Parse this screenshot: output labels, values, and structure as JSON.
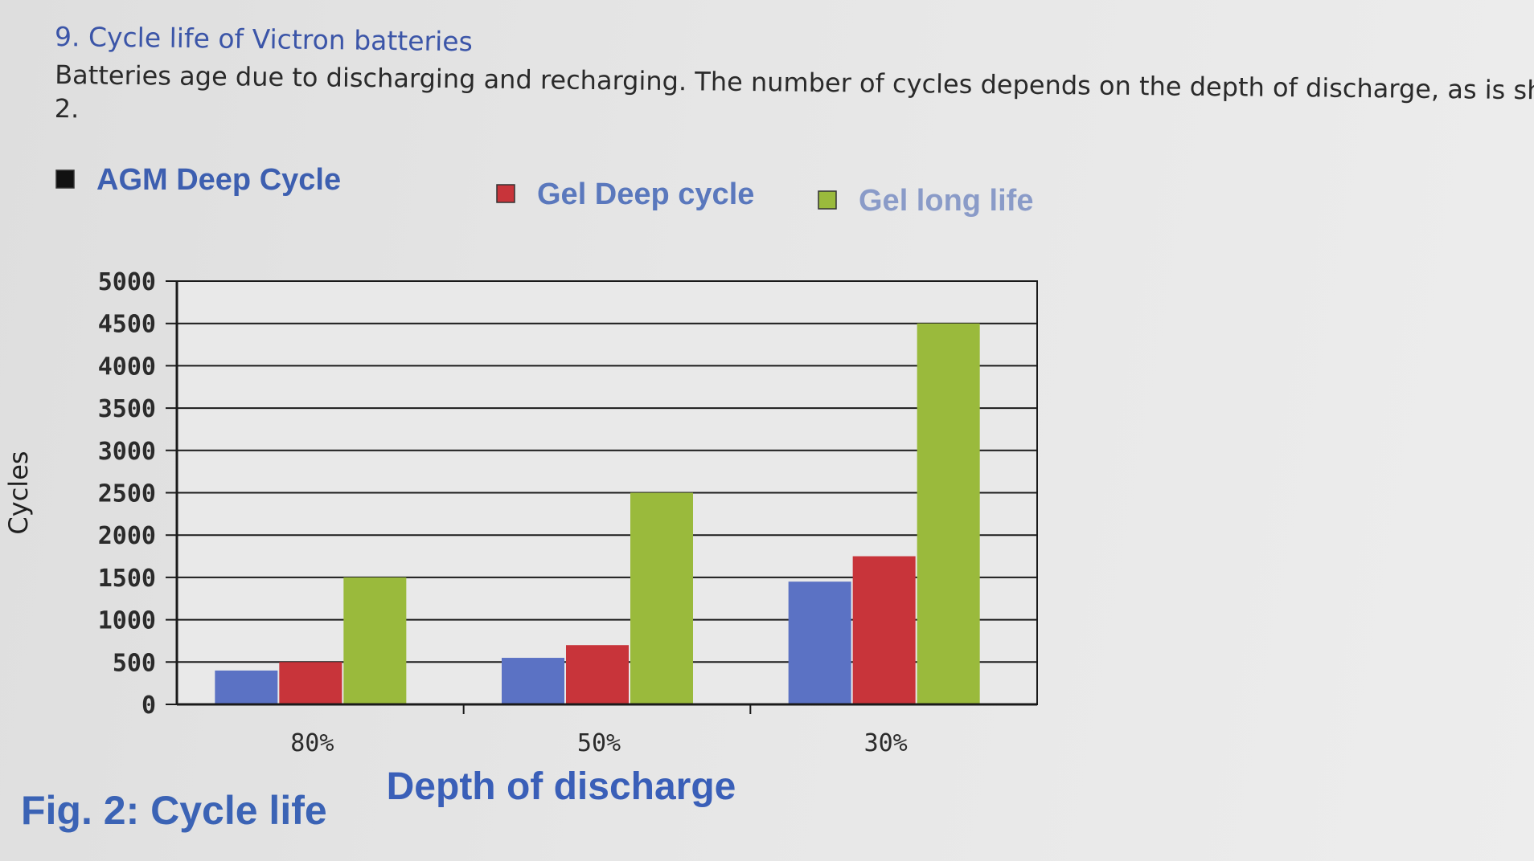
{
  "section": {
    "heading": "9. Cycle life of Victron batteries",
    "intro_line1": "Batteries age due to discharging and recharging. The number of cycles depends on the depth of discharge, as is shown",
    "intro_line2": "2."
  },
  "figure": {
    "caption": "Fig. 2: Cycle life"
  },
  "colors": {
    "AGM Deep Cycle": "#5b72c4",
    "Gel Deep cycle": "#c8343a",
    "Gel long life": "#9aba3c",
    "legend_text": "#3d5fb0",
    "axis_title": "#3a5fb8"
  },
  "chart_data": {
    "type": "bar",
    "title": "",
    "categories": [
      "80%",
      "50%",
      "30%"
    ],
    "series": [
      {
        "name": "AGM Deep Cycle",
        "values": [
          400,
          550,
          1450
        ]
      },
      {
        "name": "Gel Deep cycle",
        "values": [
          500,
          700,
          1750
        ]
      },
      {
        "name": "Gel long life",
        "values": [
          1500,
          2500,
          4500
        ]
      }
    ],
    "xlabel": "Depth of discharge",
    "ylabel": "Cycles",
    "ylim": [
      0,
      5000
    ],
    "yticks": [
      "0",
      "500",
      "1000",
      "1500",
      "2000",
      "2500",
      "3000",
      "3500",
      "4000",
      "4500",
      "5000"
    ],
    "grid": true,
    "legend_position": "top"
  }
}
